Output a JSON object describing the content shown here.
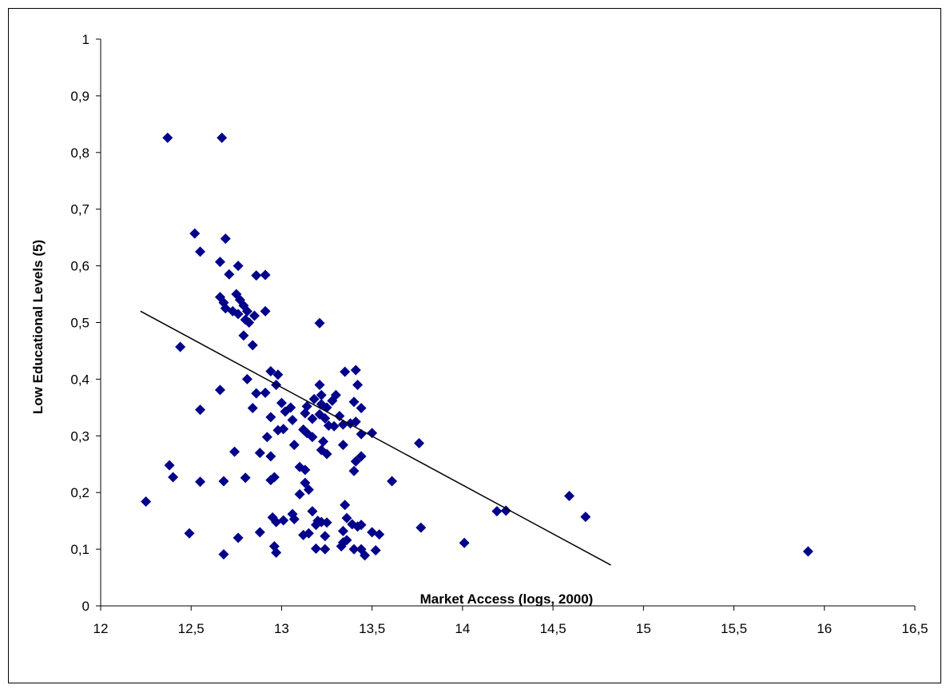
{
  "chart_data": {
    "type": "scatter",
    "title": "",
    "xlabel": "Market Access (logs, 2000)",
    "ylabel": "Low Educational Levels (5)",
    "xlim": [
      12,
      16.5
    ],
    "ylim": [
      0,
      1
    ],
    "x_ticks": [
      12,
      12.5,
      13,
      13.5,
      14,
      14.5,
      15,
      15.5,
      16,
      16.5
    ],
    "x_tick_labels": [
      "12",
      "12,5",
      "13",
      "13,5",
      "14",
      "14,5",
      "15",
      "15,5",
      "16",
      "16,5"
    ],
    "y_ticks": [
      0,
      0.1,
      0.2,
      0.3,
      0.4,
      0.5,
      0.6,
      0.7,
      0.8,
      0.9,
      1
    ],
    "y_tick_labels": [
      "0",
      "0,1",
      "0,2",
      "0,3",
      "0,4",
      "0,5",
      "0,6",
      "0,7",
      "0,8",
      "0,9",
      "1"
    ],
    "grid": false,
    "legend": "none",
    "marker_color": "#00008B",
    "trendline": {
      "x": [
        12.22,
        14.82
      ],
      "y": [
        0.52,
        0.072
      ],
      "color": "#000000"
    },
    "series": [
      {
        "points": [
          [
            12.37,
            0.826
          ],
          [
            12.67,
            0.826
          ],
          [
            12.52,
            0.657
          ],
          [
            12.69,
            0.648
          ],
          [
            12.55,
            0.625
          ],
          [
            12.66,
            0.607
          ],
          [
            12.76,
            0.6
          ],
          [
            12.71,
            0.585
          ],
          [
            12.86,
            0.583
          ],
          [
            12.91,
            0.584
          ],
          [
            12.75,
            0.55
          ],
          [
            12.66,
            0.545
          ],
          [
            12.77,
            0.54
          ],
          [
            12.68,
            0.535
          ],
          [
            12.79,
            0.53
          ],
          [
            12.73,
            0.52
          ],
          [
            12.69,
            0.525
          ],
          [
            12.81,
            0.52
          ],
          [
            12.91,
            0.52
          ],
          [
            12.76,
            0.515
          ],
          [
            12.85,
            0.512
          ],
          [
            12.8,
            0.505
          ],
          [
            12.82,
            0.5
          ],
          [
            13.21,
            0.499
          ],
          [
            12.79,
            0.477
          ],
          [
            12.84,
            0.46
          ],
          [
            12.44,
            0.457
          ],
          [
            13.41,
            0.416
          ],
          [
            12.94,
            0.414
          ],
          [
            13.35,
            0.413
          ],
          [
            12.98,
            0.408
          ],
          [
            12.81,
            0.4
          ],
          [
            13.21,
            0.39
          ],
          [
            13.42,
            0.39
          ],
          [
            12.97,
            0.39
          ],
          [
            12.66,
            0.381
          ],
          [
            12.91,
            0.376
          ],
          [
            12.86,
            0.375
          ],
          [
            13.22,
            0.372
          ],
          [
            13.3,
            0.372
          ],
          [
            13.18,
            0.365
          ],
          [
            13.28,
            0.362
          ],
          [
            13.4,
            0.36
          ],
          [
            13.0,
            0.358
          ],
          [
            13.22,
            0.356
          ],
          [
            13.14,
            0.352
          ],
          [
            13.25,
            0.35
          ],
          [
            13.05,
            0.35
          ],
          [
            13.44,
            0.349
          ],
          [
            12.84,
            0.349
          ],
          [
            12.55,
            0.346
          ],
          [
            13.02,
            0.343
          ],
          [
            13.13,
            0.34
          ],
          [
            13.21,
            0.338
          ],
          [
            13.32,
            0.335
          ],
          [
            12.94,
            0.333
          ],
          [
            13.24,
            0.331
          ],
          [
            13.17,
            0.33
          ],
          [
            13.06,
            0.328
          ],
          [
            13.41,
            0.325
          ],
          [
            13.38,
            0.322
          ],
          [
            13.34,
            0.32
          ],
          [
            13.29,
            0.317
          ],
          [
            13.26,
            0.318
          ],
          [
            12.98,
            0.31
          ],
          [
            13.01,
            0.312
          ],
          [
            13.12,
            0.311
          ],
          [
            13.14,
            0.305
          ],
          [
            13.44,
            0.303
          ],
          [
            13.5,
            0.305
          ],
          [
            13.17,
            0.298
          ],
          [
            12.92,
            0.298
          ],
          [
            13.23,
            0.29
          ],
          [
            13.76,
            0.287
          ],
          [
            13.34,
            0.284
          ],
          [
            13.07,
            0.284
          ],
          [
            13.22,
            0.275
          ],
          [
            12.74,
            0.272
          ],
          [
            12.88,
            0.27
          ],
          [
            13.25,
            0.268
          ],
          [
            13.44,
            0.264
          ],
          [
            12.94,
            0.264
          ],
          [
            13.41,
            0.255
          ],
          [
            12.38,
            0.248
          ],
          [
            13.1,
            0.245
          ],
          [
            13.13,
            0.24
          ],
          [
            13.4,
            0.238
          ],
          [
            12.4,
            0.227
          ],
          [
            12.96,
            0.227
          ],
          [
            12.8,
            0.226
          ],
          [
            12.94,
            0.222
          ],
          [
            12.68,
            0.22
          ],
          [
            13.61,
            0.22
          ],
          [
            12.55,
            0.219
          ],
          [
            13.13,
            0.217
          ],
          [
            13.15,
            0.205
          ],
          [
            13.1,
            0.197
          ],
          [
            14.59,
            0.194
          ],
          [
            12.25,
            0.184
          ],
          [
            13.35,
            0.178
          ],
          [
            14.19,
            0.167
          ],
          [
            14.24,
            0.168
          ],
          [
            13.17,
            0.167
          ],
          [
            13.06,
            0.162
          ],
          [
            14.68,
            0.157
          ],
          [
            12.95,
            0.156
          ],
          [
            13.36,
            0.155
          ],
          [
            13.07,
            0.153
          ],
          [
            13.01,
            0.151
          ],
          [
            13.2,
            0.15
          ],
          [
            12.97,
            0.148
          ],
          [
            13.22,
            0.148
          ],
          [
            13.25,
            0.147
          ],
          [
            13.39,
            0.144
          ],
          [
            13.19,
            0.143
          ],
          [
            13.44,
            0.143
          ],
          [
            13.42,
            0.14
          ],
          [
            13.77,
            0.138
          ],
          [
            13.34,
            0.132
          ],
          [
            13.5,
            0.13
          ],
          [
            12.88,
            0.13
          ],
          [
            12.49,
            0.128
          ],
          [
            13.15,
            0.128
          ],
          [
            13.12,
            0.125
          ],
          [
            13.54,
            0.126
          ],
          [
            13.24,
            0.123
          ],
          [
            12.76,
            0.12
          ],
          [
            13.36,
            0.116
          ],
          [
            13.34,
            0.112
          ],
          [
            14.01,
            0.111
          ],
          [
            13.33,
            0.105
          ],
          [
            12.96,
            0.105
          ],
          [
            13.19,
            0.101
          ],
          [
            13.24,
            0.1
          ],
          [
            13.4,
            0.1
          ],
          [
            13.44,
            0.1
          ],
          [
            13.52,
            0.098
          ],
          [
            15.91,
            0.096
          ],
          [
            12.97,
            0.094
          ],
          [
            12.68,
            0.091
          ],
          [
            13.46,
            0.089
          ]
        ]
      }
    ]
  }
}
